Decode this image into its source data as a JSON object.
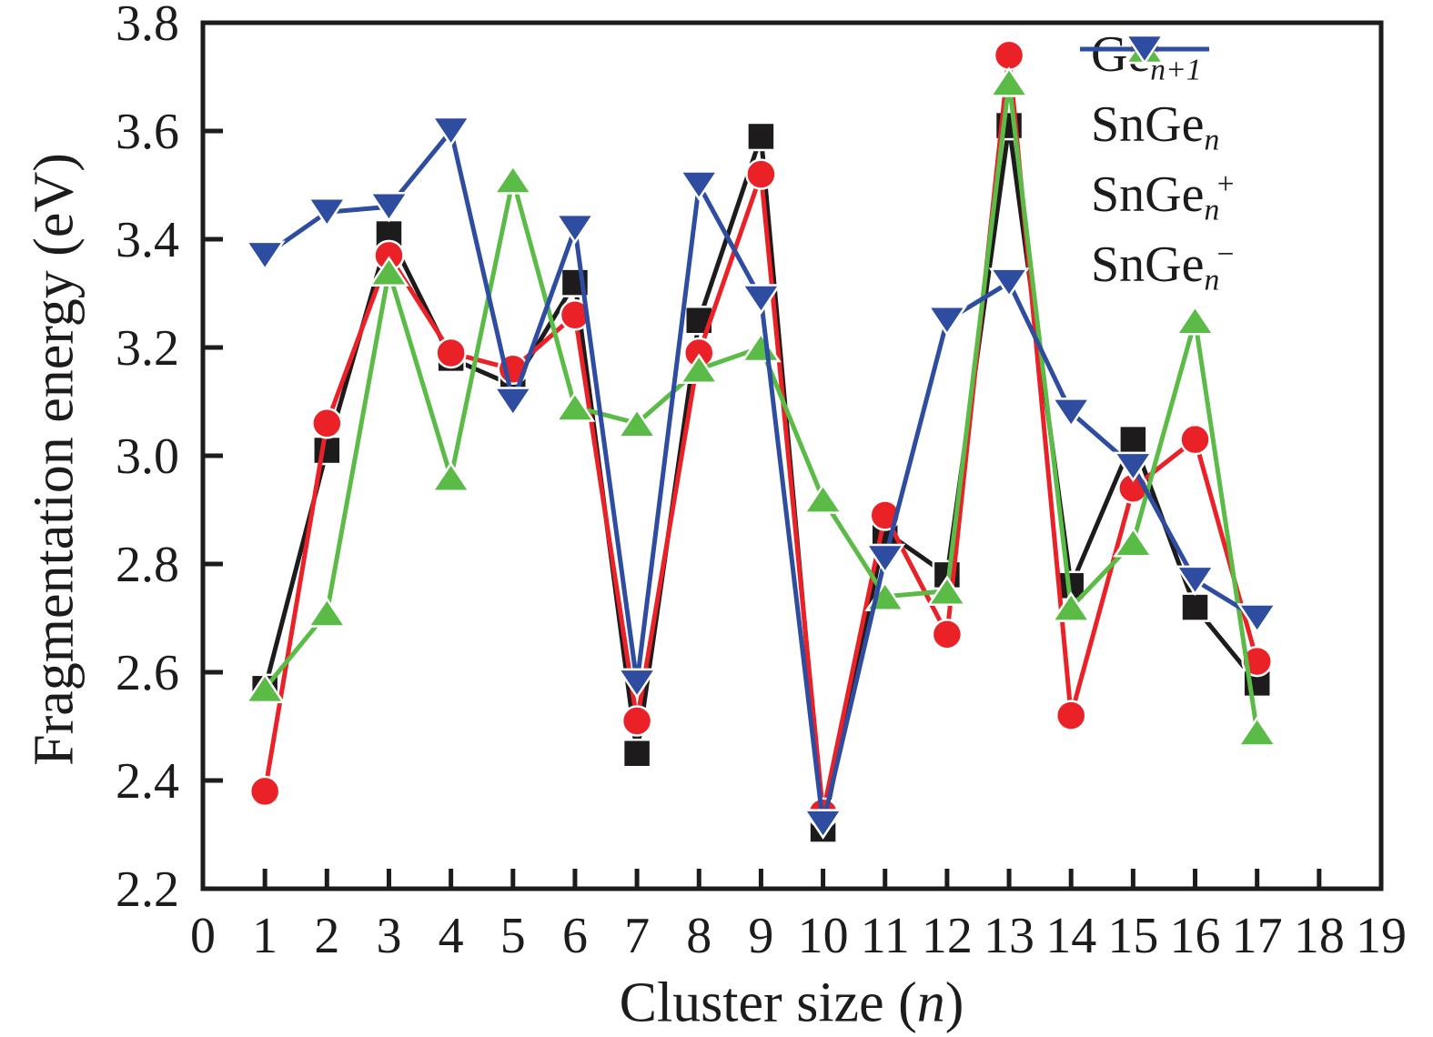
{
  "figure": {
    "background": "#ffffff",
    "axis_color": "#1e1b1c"
  },
  "chart_data": {
    "type": "line",
    "title": "",
    "xlabel": "Cluster size (n)",
    "xlabel_parts": {
      "prefix": "Cluster size (",
      "italic": "n",
      "suffix": ")"
    },
    "ylabel": "Fragmentation energy (eV)",
    "x": [
      1,
      2,
      3,
      4,
      5,
      6,
      7,
      8,
      9,
      10,
      11,
      12,
      13,
      14,
      15,
      16,
      17
    ],
    "xlim": [
      0,
      19
    ],
    "ylim": [
      2.2,
      3.8
    ],
    "xticks": [
      0,
      1,
      2,
      3,
      4,
      5,
      6,
      7,
      8,
      9,
      10,
      11,
      12,
      13,
      14,
      15,
      16,
      17,
      18,
      19
    ],
    "yticks": [
      2.2,
      2.4,
      2.6,
      2.8,
      3.0,
      3.2,
      3.4,
      3.6,
      3.8
    ],
    "grid": false,
    "legend_position": "top-right",
    "series": [
      {
        "name": "Ge_n+1",
        "label": {
          "base": "Ge",
          "sub": "n+1",
          "sup": ""
        },
        "color": "#1e1b1c",
        "marker": "square",
        "values": [
          2.57,
          3.01,
          3.41,
          3.18,
          3.13,
          3.32,
          2.45,
          3.25,
          3.59,
          2.31,
          2.86,
          2.78,
          3.61,
          2.76,
          3.03,
          2.72,
          2.58
        ]
      },
      {
        "name": "SnGe_n",
        "label": {
          "base": "SnGe",
          "sub": "n",
          "sup": ""
        },
        "color": "#ea2227",
        "marker": "circle",
        "values": [
          2.38,
          3.06,
          3.37,
          3.19,
          3.16,
          3.26,
          2.51,
          3.19,
          3.52,
          2.34,
          2.89,
          2.67,
          3.74,
          2.52,
          2.94,
          3.03,
          2.62
        ]
      },
      {
        "name": "SnGe_n_plus",
        "label": {
          "base": "SnGe",
          "sub": "n",
          "sup": "+"
        },
        "color": "#5bbb47",
        "marker": "triangle-up",
        "values": [
          2.57,
          2.71,
          3.34,
          2.96,
          3.51,
          3.09,
          3.06,
          3.16,
          3.2,
          2.92,
          2.74,
          2.75,
          3.69,
          2.72,
          2.84,
          3.25,
          2.49
        ]
      },
      {
        "name": "SnGe_n_minus",
        "label": {
          "base": "SnGe",
          "sub": "n",
          "sup": "−"
        },
        "color": "#2e4ca0",
        "marker": "triangle-down",
        "values": [
          3.37,
          3.45,
          3.46,
          3.6,
          3.1,
          3.42,
          2.58,
          3.5,
          3.29,
          2.32,
          2.81,
          3.25,
          3.32,
          3.08,
          2.98,
          2.77,
          2.7
        ]
      }
    ]
  }
}
